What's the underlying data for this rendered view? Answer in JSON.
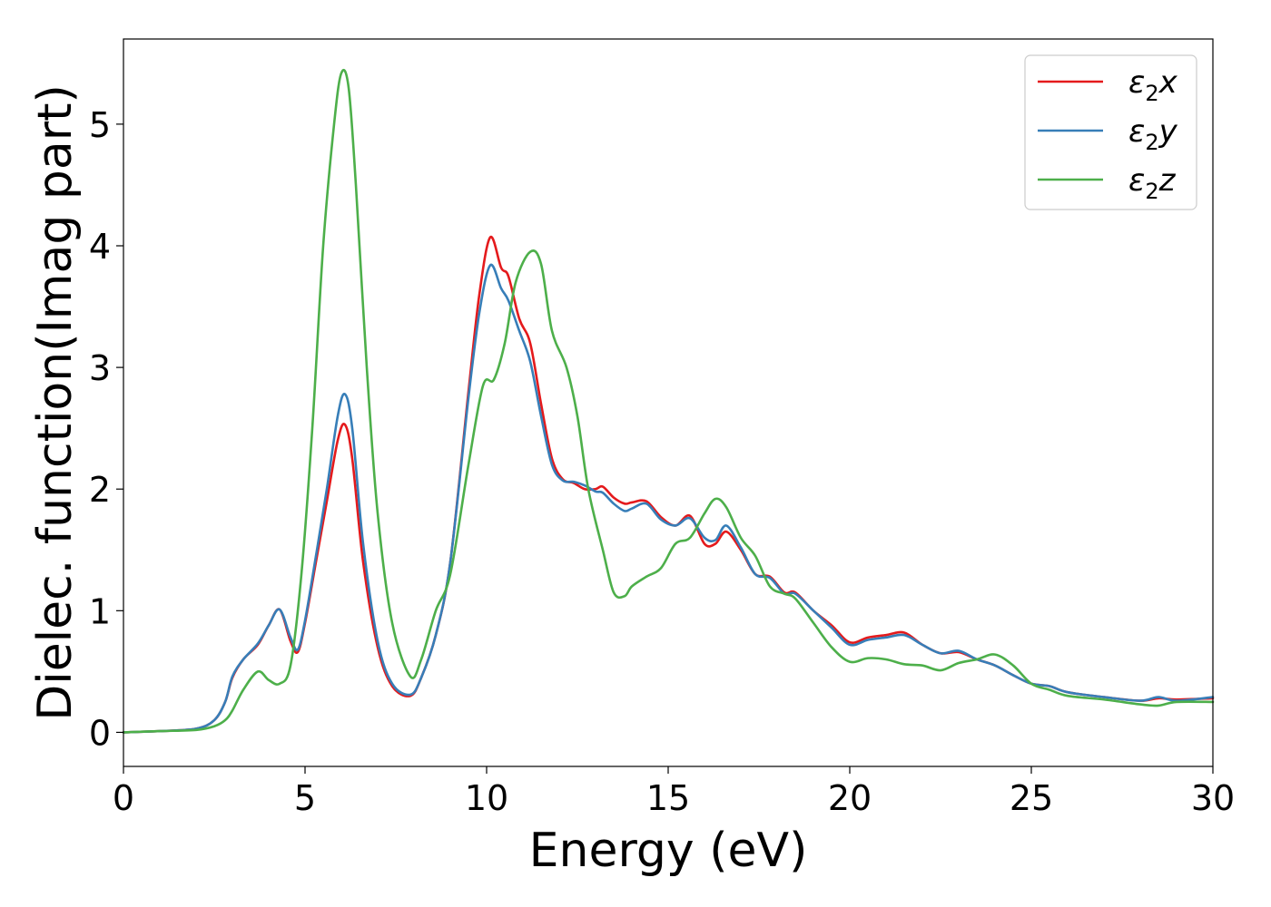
{
  "chart_data": {
    "type": "line",
    "xlabel": "Energy (eV)",
    "ylabel": "Dielec. function(Imag part)",
    "xlim": [
      0,
      30
    ],
    "ylim": [
      -0.28,
      5.7
    ],
    "xticks": [
      0,
      5,
      10,
      15,
      20,
      25,
      30
    ],
    "yticks": [
      0,
      1,
      2,
      3,
      4,
      5
    ],
    "grid": false,
    "legend_position": "top-right",
    "series": [
      {
        "name": "ε2x",
        "legend": {
          "symbol": "ε",
          "sub": "2",
          "var": "x"
        },
        "color": "#e41a1c",
        "x": [
          0,
          1,
          2,
          2.5,
          2.8,
          3.0,
          3.3,
          3.7,
          4.0,
          4.3,
          4.6,
          4.8,
          5.0,
          5.3,
          5.6,
          5.9,
          6.1,
          6.3,
          6.6,
          7.0,
          7.4,
          7.9,
          8.2,
          8.6,
          9.0,
          9.5,
          9.8,
          10.1,
          10.4,
          10.6,
          10.9,
          11.2,
          11.5,
          11.8,
          12.1,
          12.4,
          12.7,
          13.0,
          13.2,
          13.5,
          13.8,
          14.0,
          14.4,
          14.8,
          15.2,
          15.6,
          16.0,
          16.3,
          16.6,
          17.0,
          17.4,
          17.8,
          18.2,
          18.5,
          19.0,
          19.5,
          20.0,
          20.5,
          21.0,
          21.5,
          22.0,
          22.5,
          23.0,
          23.5,
          24.0,
          24.5,
          25.0,
          25.5,
          26.0,
          27.0,
          28.0,
          28.5,
          29.0,
          30.0
        ],
        "values": [
          0.0,
          0.01,
          0.03,
          0.1,
          0.25,
          0.45,
          0.6,
          0.72,
          0.88,
          1.01,
          0.75,
          0.66,
          0.9,
          1.4,
          1.9,
          2.4,
          2.53,
          2.25,
          1.4,
          0.7,
          0.38,
          0.3,
          0.45,
          0.8,
          1.4,
          2.8,
          3.6,
          4.07,
          3.82,
          3.75,
          3.4,
          3.2,
          2.7,
          2.25,
          2.08,
          2.05,
          2.0,
          2.0,
          2.02,
          1.93,
          1.88,
          1.89,
          1.9,
          1.77,
          1.7,
          1.78,
          1.55,
          1.55,
          1.65,
          1.5,
          1.3,
          1.28,
          1.15,
          1.15,
          1.0,
          0.88,
          0.74,
          0.78,
          0.8,
          0.82,
          0.72,
          0.65,
          0.66,
          0.6,
          0.55,
          0.47,
          0.4,
          0.38,
          0.33,
          0.29,
          0.26,
          0.28,
          0.27,
          0.28
        ]
      },
      {
        "name": "ε2y",
        "legend": {
          "symbol": "ε",
          "sub": "2",
          "var": "y"
        },
        "color": "#377eb8",
        "x": [
          0,
          1,
          2,
          2.5,
          2.8,
          3.0,
          3.3,
          3.7,
          4.0,
          4.3,
          4.6,
          4.8,
          5.0,
          5.3,
          5.6,
          5.9,
          6.1,
          6.3,
          6.6,
          7.0,
          7.4,
          7.9,
          8.2,
          8.6,
          9.0,
          9.5,
          9.8,
          10.1,
          10.4,
          10.6,
          10.9,
          11.2,
          11.5,
          11.8,
          12.1,
          12.4,
          12.7,
          13.0,
          13.2,
          13.5,
          13.8,
          14.0,
          14.4,
          14.8,
          15.2,
          15.6,
          16.0,
          16.3,
          16.6,
          17.0,
          17.4,
          17.8,
          18.2,
          18.5,
          19.0,
          19.5,
          20.0,
          20.5,
          21.0,
          21.5,
          22.0,
          22.5,
          23.0,
          23.5,
          24.0,
          24.5,
          25.0,
          25.5,
          26.0,
          27.0,
          28.0,
          28.5,
          29.0,
          30.0
        ],
        "values": [
          0.0,
          0.01,
          0.03,
          0.1,
          0.25,
          0.46,
          0.6,
          0.73,
          0.88,
          1.01,
          0.78,
          0.68,
          0.92,
          1.45,
          2.0,
          2.6,
          2.78,
          2.5,
          1.55,
          0.75,
          0.4,
          0.31,
          0.45,
          0.8,
          1.4,
          2.75,
          3.45,
          3.84,
          3.65,
          3.55,
          3.3,
          3.05,
          2.6,
          2.2,
          2.07,
          2.06,
          2.03,
          1.98,
          1.97,
          1.88,
          1.82,
          1.84,
          1.88,
          1.75,
          1.7,
          1.76,
          1.6,
          1.58,
          1.7,
          1.52,
          1.3,
          1.27,
          1.14,
          1.14,
          1.0,
          0.86,
          0.72,
          0.76,
          0.78,
          0.8,
          0.72,
          0.65,
          0.67,
          0.6,
          0.55,
          0.47,
          0.4,
          0.38,
          0.33,
          0.29,
          0.26,
          0.29,
          0.26,
          0.29
        ]
      },
      {
        "name": "ε2z",
        "legend": {
          "symbol": "ε",
          "sub": "2",
          "var": "z"
        },
        "color": "#4daf4a",
        "x": [
          0,
          1,
          2,
          2.5,
          2.8,
          3.0,
          3.3,
          3.7,
          4.0,
          4.3,
          4.6,
          4.9,
          5.2,
          5.5,
          5.8,
          6.0,
          6.2,
          6.4,
          6.7,
          7.0,
          7.4,
          7.9,
          8.2,
          8.6,
          9.0,
          9.5,
          9.9,
          10.2,
          10.5,
          10.8,
          11.2,
          11.5,
          11.8,
          12.2,
          12.5,
          12.8,
          13.2,
          13.5,
          13.8,
          14.0,
          14.4,
          14.8,
          15.2,
          15.6,
          16.0,
          16.3,
          16.6,
          17.0,
          17.4,
          17.8,
          18.2,
          18.5,
          19.0,
          19.5,
          20.0,
          20.5,
          21.0,
          21.5,
          22.0,
          22.5,
          23.0,
          23.5,
          24.0,
          24.5,
          25.0,
          25.5,
          26.0,
          27.0,
          28.0,
          28.5,
          29.0,
          30.0
        ],
        "values": [
          0.0,
          0.01,
          0.02,
          0.05,
          0.1,
          0.18,
          0.35,
          0.5,
          0.43,
          0.4,
          0.55,
          1.3,
          2.5,
          4.0,
          5.0,
          5.42,
          5.3,
          4.5,
          3.0,
          1.8,
          0.9,
          0.46,
          0.6,
          1.0,
          1.3,
          2.2,
          2.85,
          2.9,
          3.2,
          3.7,
          3.95,
          3.85,
          3.3,
          3.0,
          2.6,
          2.0,
          1.5,
          1.15,
          1.12,
          1.2,
          1.28,
          1.35,
          1.55,
          1.6,
          1.8,
          1.92,
          1.85,
          1.6,
          1.45,
          1.2,
          1.14,
          1.1,
          0.9,
          0.7,
          0.58,
          0.61,
          0.6,
          0.56,
          0.55,
          0.51,
          0.57,
          0.6,
          0.64,
          0.55,
          0.4,
          0.35,
          0.3,
          0.27,
          0.23,
          0.22,
          0.25,
          0.25
        ]
      }
    ]
  }
}
